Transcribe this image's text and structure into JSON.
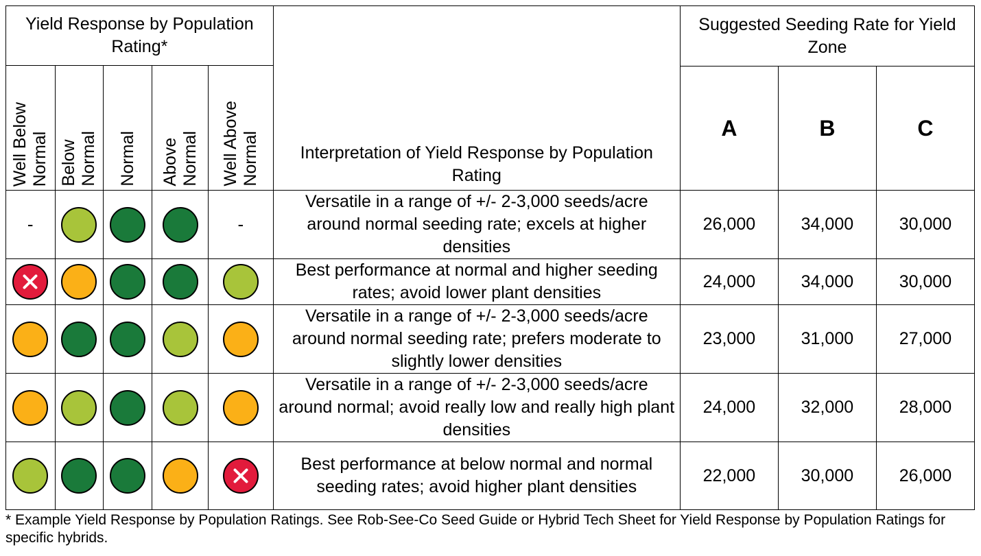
{
  "header": {
    "group_title": "Yield Response by Population Rating*",
    "interp_title": "Interpretation of Yield Response by Population Rating",
    "seeding_title": "Suggested Seeding Rate for Yield Zone",
    "rating_columns": [
      "Well Below\nNormal",
      "Below\nNormal",
      "Normal",
      "Above\nNormal",
      "Well Above\nNormal"
    ],
    "zones": [
      "A",
      "B",
      "C"
    ]
  },
  "legend_colors": {
    "light_green": "#a8c43a",
    "dark_green": "#1a7a3a",
    "orange": "#fbb017",
    "red_x": "#e21b3c"
  },
  "rows": [
    {
      "ratings": [
        "-",
        "light-green",
        "dark-green",
        "dark-green",
        "-"
      ],
      "interpretation": "Versatile in a range of +/- 2-3,000 seeds/acre around normal seeding rate; excels at higher densities",
      "rates": [
        "26,000",
        "34,000",
        "30,000"
      ]
    },
    {
      "ratings": [
        "red-x",
        "orange",
        "dark-green",
        "dark-green",
        "light-green"
      ],
      "interpretation": "Best performance at normal and higher seeding rates; avoid lower plant densities",
      "rates": [
        "24,000",
        "34,000",
        "30,000"
      ]
    },
    {
      "ratings": [
        "orange",
        "dark-green",
        "dark-green",
        "light-green",
        "orange"
      ],
      "interpretation": "Versatile in a range of +/- 2-3,000 seeds/acre around normal seeding rate; prefers moderate to slightly lower densities",
      "rates": [
        "23,000",
        "31,000",
        "27,000"
      ]
    },
    {
      "ratings": [
        "orange",
        "light-green",
        "dark-green",
        "light-green",
        "orange"
      ],
      "interpretation": "Versatile in a range of +/- 2-3,000 seeds/acre around normal; avoid really low and really high plant densities",
      "rates": [
        "24,000",
        "32,000",
        "28,000"
      ]
    },
    {
      "ratings": [
        "light-green",
        "dark-green",
        "dark-green",
        "orange",
        "red-x"
      ],
      "interpretation": "Best performance at below normal and normal seeding rates; avoid higher plant densities",
      "rates": [
        "22,000",
        "30,000",
        "26,000"
      ]
    }
  ],
  "footnote": "* Example Yield Response by Population Ratings. See Rob-See-Co Seed Guide or Hybrid Tech Sheet for Yield Response by Population Ratings for specific hybrids."
}
